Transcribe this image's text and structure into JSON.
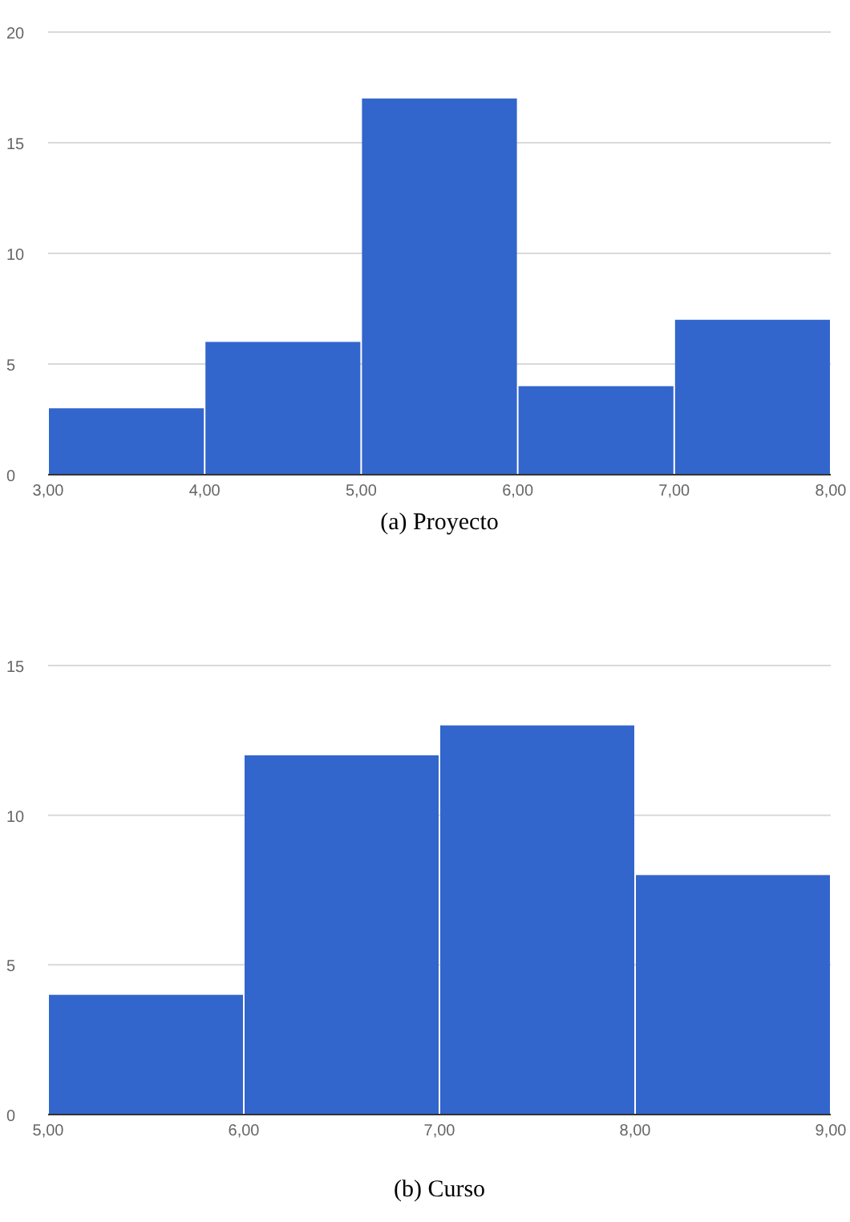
{
  "chart_data": [
    {
      "type": "histogram",
      "title": "(a) Proyecto",
      "bins": [
        3,
        4,
        5,
        6,
        7,
        8
      ],
      "values": [
        3,
        6,
        17,
        4,
        7
      ],
      "color": "#3366cc",
      "xlim": [
        3,
        8
      ],
      "xticks": [
        {
          "value": 3,
          "label": "3,00"
        },
        {
          "value": 4,
          "label": "4,00"
        },
        {
          "value": 5,
          "label": "5,00"
        },
        {
          "value": 6,
          "label": "6,00"
        },
        {
          "value": 7,
          "label": "7,00"
        },
        {
          "value": 8,
          "label": "8,00"
        }
      ],
      "ylim": [
        0,
        20
      ],
      "yticks": [
        0,
        5,
        10,
        15,
        20
      ],
      "grid": "y"
    },
    {
      "type": "histogram",
      "title": "(b) Curso",
      "bins": [
        5,
        6,
        7,
        8,
        9
      ],
      "values": [
        4,
        12,
        13,
        8
      ],
      "color": "#3366cc",
      "xlim": [
        5,
        9
      ],
      "xticks": [
        {
          "value": 5,
          "label": "5,00"
        },
        {
          "value": 6,
          "label": "6,00"
        },
        {
          "value": 7,
          "label": "7,00"
        },
        {
          "value": 8,
          "label": "8,00"
        },
        {
          "value": 9,
          "label": "9,00"
        }
      ],
      "ylim": [
        0,
        15
      ],
      "yticks": [
        0,
        5,
        10,
        15
      ],
      "grid": "y"
    }
  ]
}
